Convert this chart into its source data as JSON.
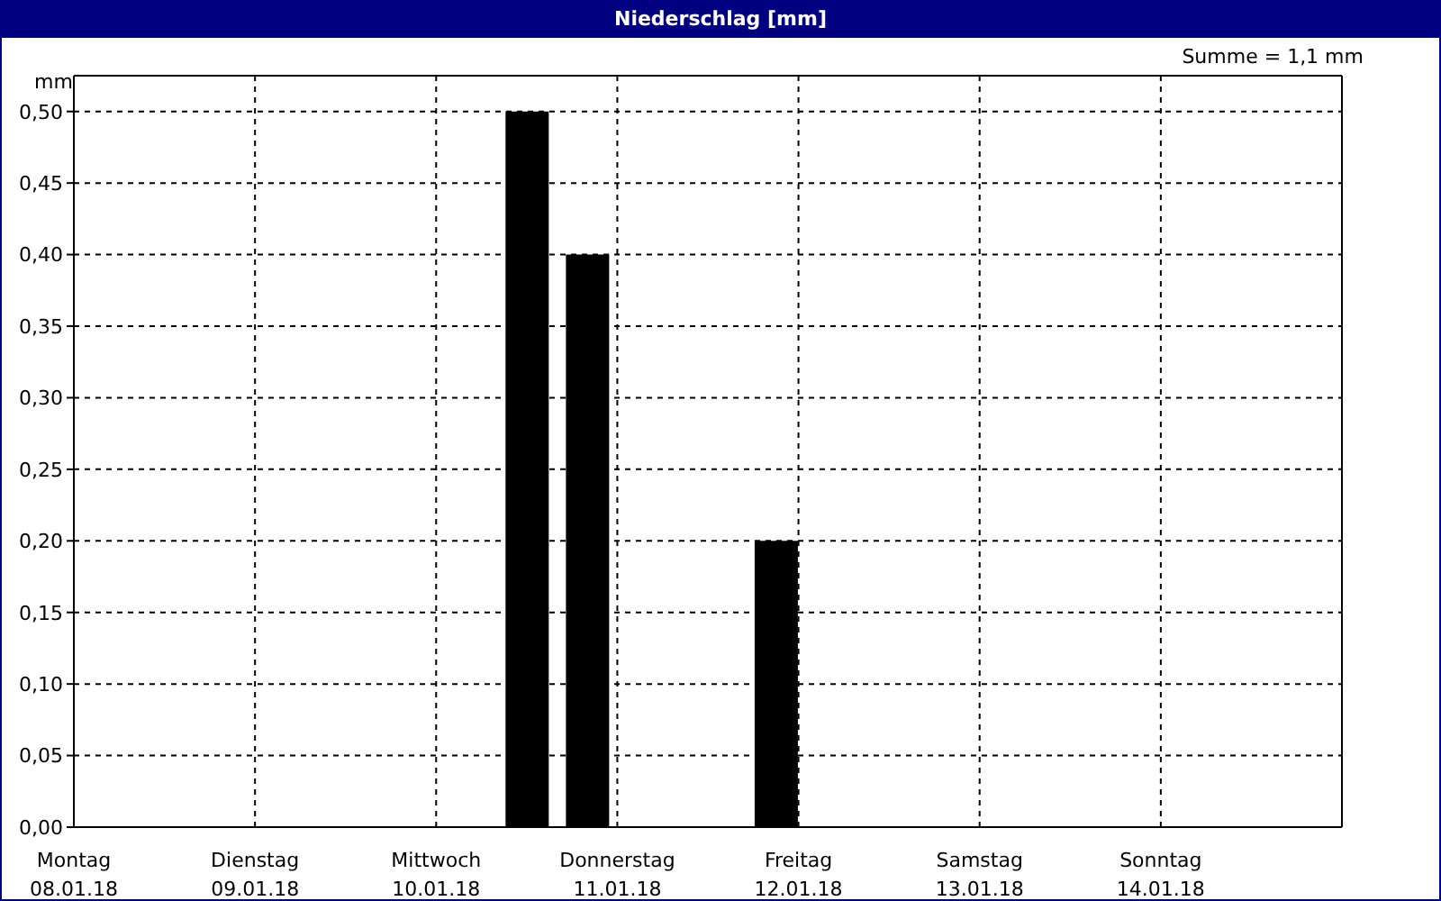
{
  "chart_data": {
    "type": "bar",
    "title": "Niederschlag [mm]",
    "ylabel": "mm",
    "annotations": [
      "Summe = 1,1 mm"
    ],
    "x": [
      "--01-10T12:00",
      "--01-10T20:00",
      "--01-11T21:00"
    ],
    "values": [
      0.5,
      0.4,
      0.2
    ],
    "color": "#000000",
    "xlim": [
      "--01-08",
      "--01-15"
    ],
    "xticks": [
      {
        "value": "--01-08",
        "label": "Montag\n08.01.18"
      },
      {
        "value": "--01-09",
        "label": "Dienstag\n09.01.18"
      },
      {
        "value": "--01-10",
        "label": "Mittwoch\n10.01.18"
      },
      {
        "value": "--01-11",
        "label": "Donnerstag\n11.01.18"
      },
      {
        "value": "--01-12",
        "label": "Freitag\n12.01.18"
      },
      {
        "value": "--01-13",
        "label": "Samstag\n13.01.18"
      },
      {
        "value": "--01-14",
        "label": "Sonntag\n14.01.18"
      }
    ],
    "ylim": [
      0,
      0.525
    ],
    "yticks": [
      {
        "value": 0,
        "label": "0,00"
      },
      {
        "value": 0.05,
        "label": "0,05"
      },
      {
        "value": 0.1,
        "label": "0,10"
      },
      {
        "value": 0.15,
        "label": "0,15"
      },
      {
        "value": 0.2,
        "label": "0,20"
      },
      {
        "value": 0.25,
        "label": "0,25"
      },
      {
        "value": 0.3,
        "label": "0,30"
      },
      {
        "value": 0.35,
        "label": "0,35"
      },
      {
        "value": 0.4,
        "label": "0,40"
      },
      {
        "value": 0.45,
        "label": "0,45"
      },
      {
        "value": 0.5,
        "label": "0,50"
      }
    ],
    "grid": true
  }
}
